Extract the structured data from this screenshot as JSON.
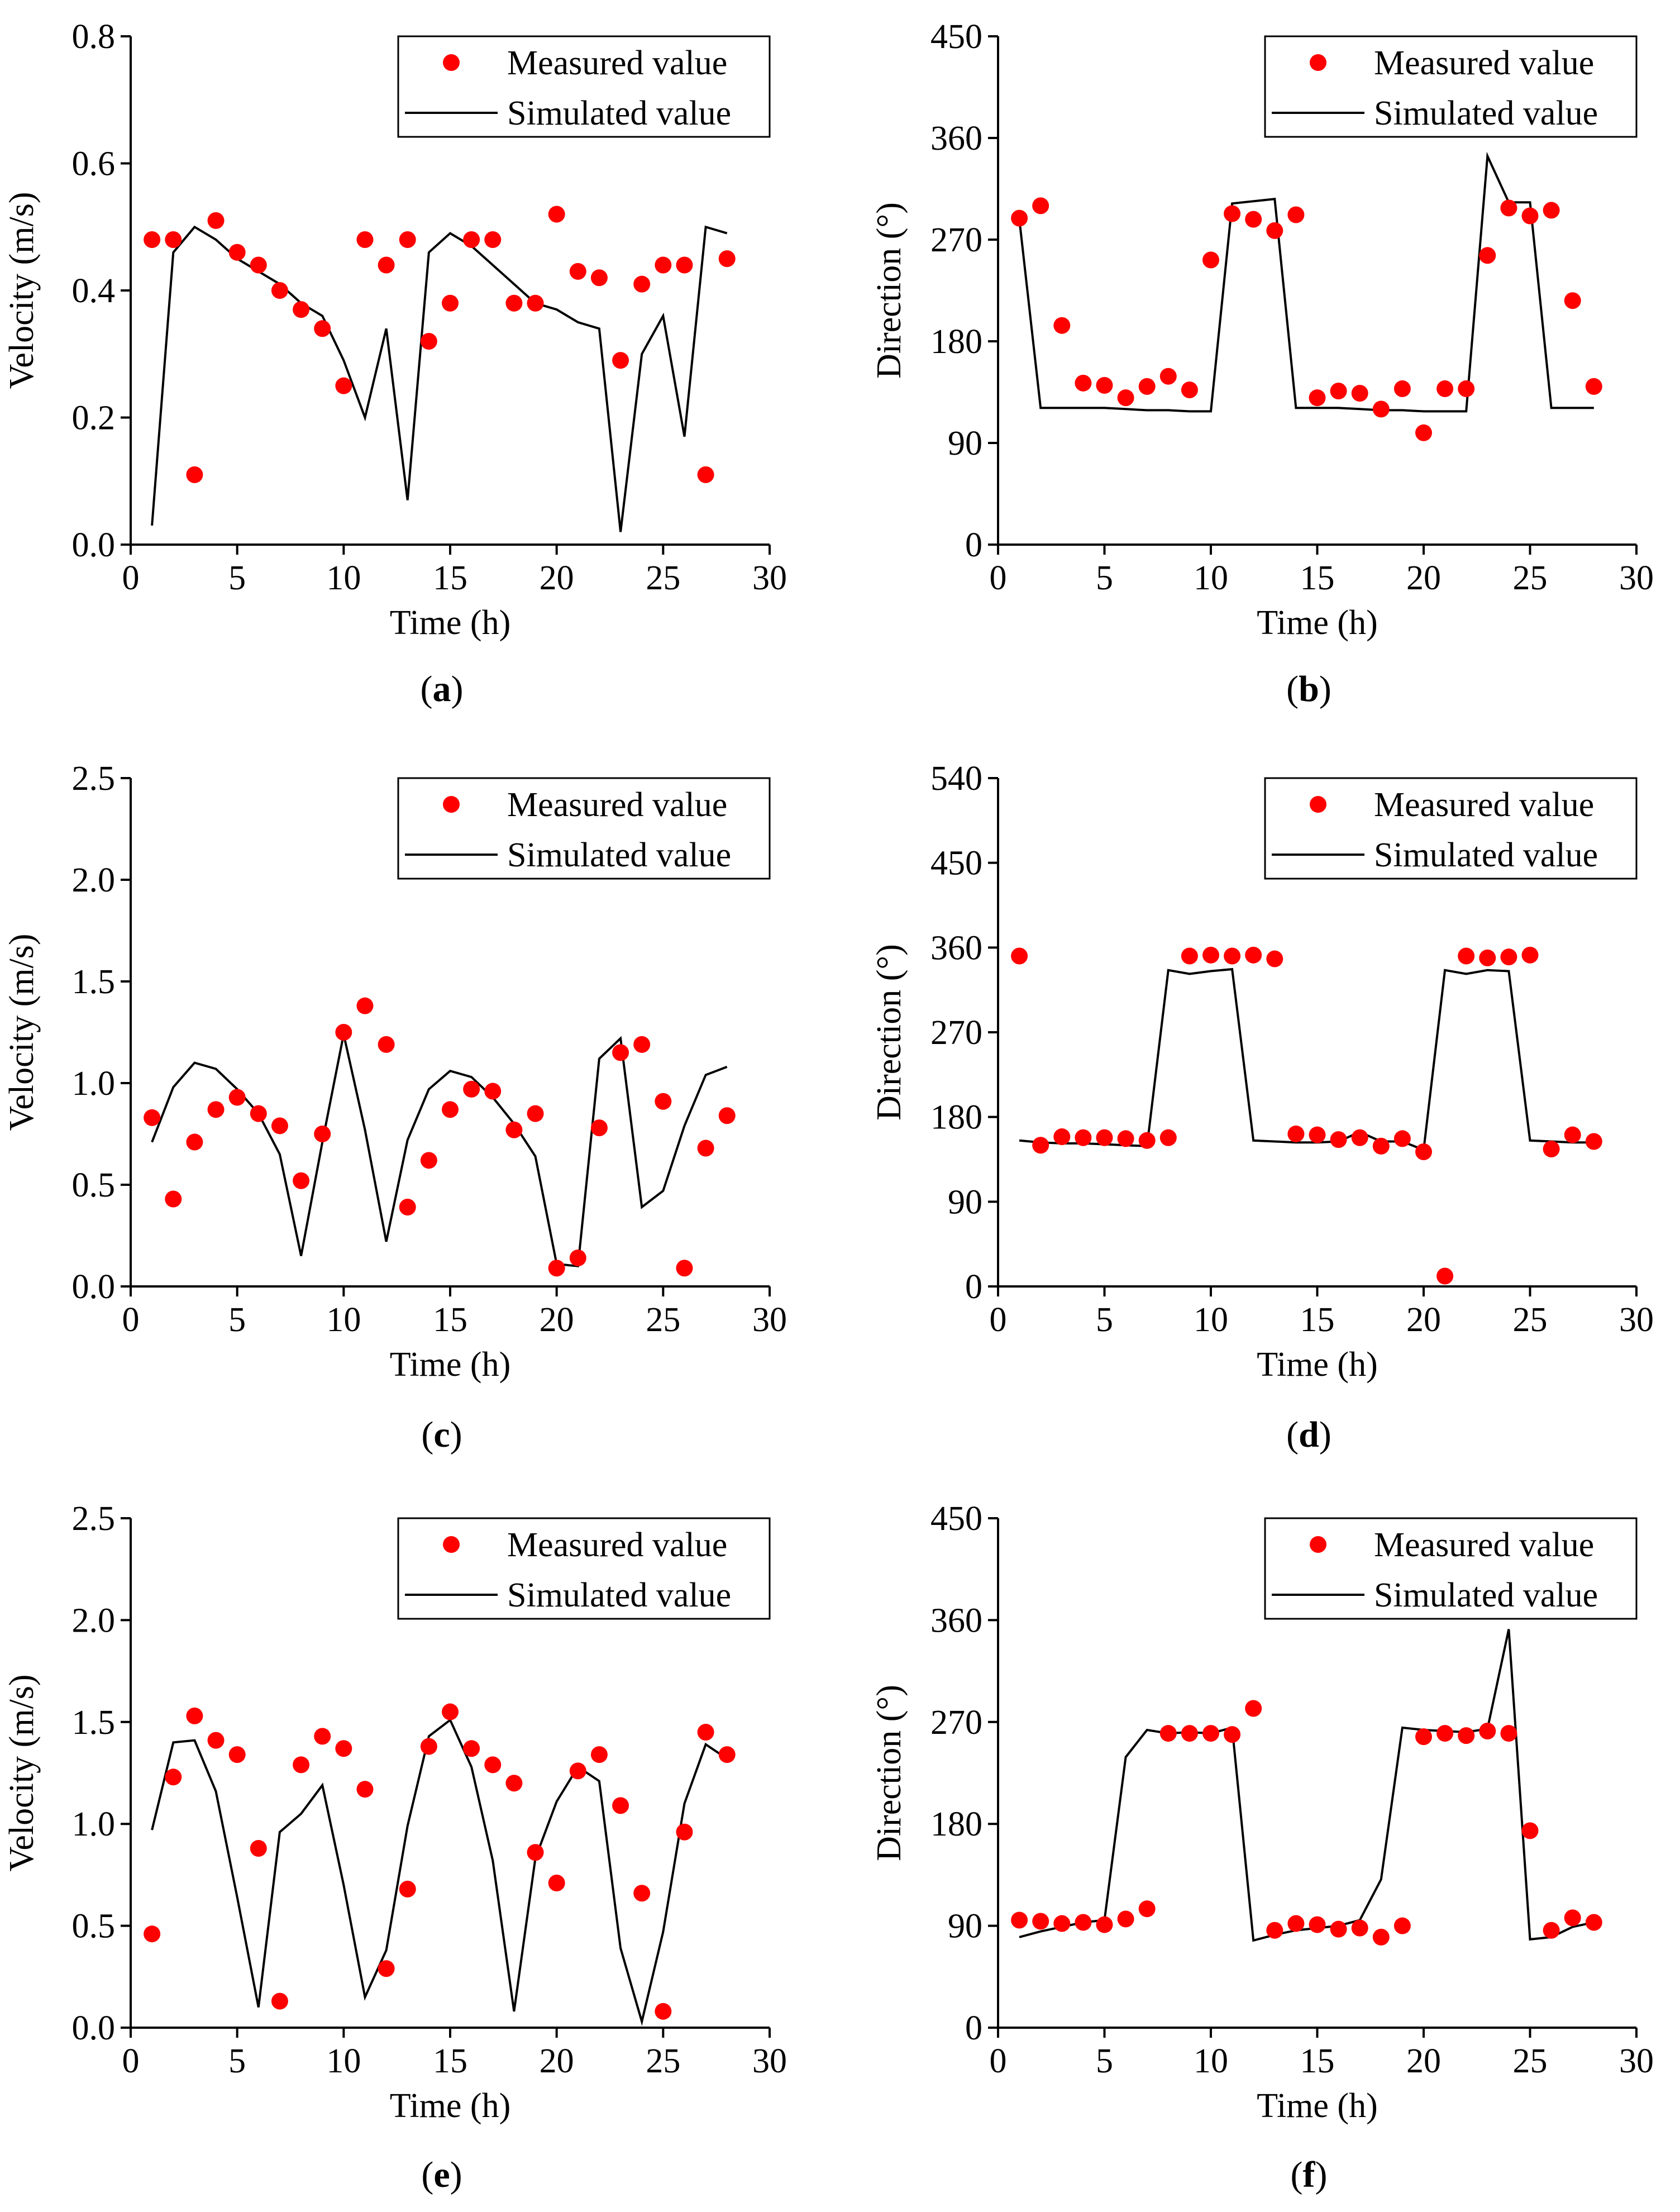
{
  "legend": {
    "measured_label": "Measured value",
    "simulated_label": "Simulated value",
    "measured_color": "#ff0000",
    "line_color": "#000000"
  },
  "chart_data": [
    {
      "id": "a",
      "type": "scatter+line",
      "panel_label": "a",
      "xlabel": "Time (h)",
      "ylabel": "Velocity (m/s)",
      "xlim": [
        0,
        30
      ],
      "ylim": [
        0,
        0.8
      ],
      "xticks": [
        0,
        5,
        10,
        15,
        20,
        25,
        30
      ],
      "yticks": [
        0.0,
        0.2,
        0.4,
        0.6,
        0.8
      ],
      "ytick_labels": [
        "0.0",
        "0.2",
        "0.4",
        "0.6",
        "0.8"
      ],
      "series": [
        {
          "name": "Measured value",
          "kind": "scatter",
          "x": [
            1,
            2,
            3,
            4,
            5,
            6,
            7,
            8,
            9,
            10,
            11,
            12,
            13,
            14,
            15,
            16,
            17,
            18,
            19,
            20,
            21,
            22,
            23,
            24,
            25,
            26,
            27,
            28
          ],
          "y": [
            0.48,
            0.48,
            0.11,
            0.51,
            0.46,
            0.44,
            0.4,
            0.37,
            0.34,
            0.25,
            0.48,
            0.44,
            0.48,
            0.32,
            0.38,
            0.48,
            0.48,
            0.38,
            0.38,
            0.52,
            0.43,
            0.42,
            0.29,
            0.41,
            0.44,
            0.44,
            0.11,
            0.45
          ]
        },
        {
          "name": "Simulated value",
          "kind": "line",
          "x": [
            1,
            2,
            3,
            4,
            5,
            6,
            7,
            8,
            9,
            10,
            11,
            12,
            13,
            14,
            15,
            16,
            17,
            18,
            19,
            20,
            21,
            22,
            23,
            24,
            25,
            26,
            27,
            28
          ],
          "y": [
            0.03,
            0.46,
            0.5,
            0.48,
            0.45,
            0.43,
            0.41,
            0.38,
            0.36,
            0.29,
            0.2,
            0.34,
            0.07,
            0.46,
            0.49,
            0.47,
            0.44,
            0.41,
            0.38,
            0.37,
            0.35,
            0.34,
            0.02,
            0.3,
            0.36,
            0.17,
            0.5,
            0.49
          ]
        }
      ]
    },
    {
      "id": "b",
      "type": "scatter+line",
      "panel_label": "b",
      "xlabel": "Time (h)",
      "ylabel": "Direction (°)",
      "xlim": [
        0,
        30
      ],
      "ylim": [
        0,
        450
      ],
      "xticks": [
        0,
        5,
        10,
        15,
        20,
        25,
        30
      ],
      "yticks": [
        0,
        90,
        180,
        270,
        360,
        450
      ],
      "ytick_labels": [
        "0",
        "90",
        "180",
        "270",
        "360",
        "450"
      ],
      "series": [
        {
          "name": "Measured value",
          "kind": "scatter",
          "x": [
            1,
            2,
            3,
            4,
            5,
            6,
            7,
            8,
            9,
            10,
            11,
            12,
            13,
            14,
            15,
            16,
            17,
            18,
            19,
            20,
            21,
            22,
            23,
            24,
            25,
            26,
            27,
            28
          ],
          "y": [
            289,
            300,
            194,
            143,
            141,
            130,
            140,
            149,
            137,
            252,
            293,
            288,
            278,
            292,
            130,
            136,
            134,
            120,
            138,
            99,
            138,
            138,
            256,
            298,
            291,
            296,
            216,
            140
          ]
        },
        {
          "name": "Simulated value",
          "kind": "line",
          "x": [
            1,
            2,
            3,
            4,
            5,
            6,
            7,
            8,
            9,
            10,
            11,
            12,
            13,
            14,
            15,
            16,
            17,
            18,
            19,
            20,
            21,
            22,
            23,
            24,
            25,
            26,
            27,
            28
          ],
          "y": [
            288,
            121,
            121,
            121,
            121,
            120,
            119,
            119,
            118,
            118,
            302,
            304,
            306,
            121,
            121,
            121,
            120,
            119,
            119,
            118,
            118,
            118,
            344,
            303,
            303,
            121,
            121,
            121
          ]
        }
      ]
    },
    {
      "id": "c",
      "type": "scatter+line",
      "panel_label": "c",
      "xlabel": "Time (h)",
      "ylabel": "Velocity (m/s)",
      "xlim": [
        0,
        30
      ],
      "ylim": [
        0,
        2.5
      ],
      "xticks": [
        0,
        5,
        10,
        15,
        20,
        25,
        30
      ],
      "yticks": [
        0.0,
        0.5,
        1.0,
        1.5,
        2.0,
        2.5
      ],
      "ytick_labels": [
        "0.0",
        "0.5",
        "1.0",
        "1.5",
        "2.0",
        "2.5"
      ],
      "series": [
        {
          "name": "Measured value",
          "kind": "scatter",
          "x": [
            1,
            2,
            3,
            4,
            5,
            6,
            7,
            8,
            9,
            10,
            11,
            12,
            13,
            14,
            15,
            16,
            17,
            18,
            19,
            20,
            21,
            22,
            23,
            24,
            25,
            26,
            27,
            28
          ],
          "y": [
            0.83,
            0.43,
            0.71,
            0.87,
            0.93,
            0.85,
            0.79,
            0.52,
            0.75,
            1.25,
            1.38,
            1.19,
            0.39,
            0.62,
            0.87,
            0.97,
            0.96,
            0.77,
            0.85,
            0.09,
            0.14,
            0.78,
            1.15,
            1.19,
            0.91,
            0.09,
            0.68,
            0.84
          ]
        },
        {
          "name": "Simulated value",
          "kind": "line",
          "x": [
            1,
            2,
            3,
            4,
            5,
            6,
            7,
            8,
            9,
            10,
            11,
            12,
            13,
            14,
            15,
            16,
            17,
            18,
            19,
            20,
            21,
            22,
            23,
            24,
            25,
            26,
            27,
            28
          ],
          "y": [
            0.71,
            0.98,
            1.1,
            1.07,
            0.97,
            0.85,
            0.65,
            0.15,
            0.71,
            1.24,
            0.77,
            0.22,
            0.72,
            0.97,
            1.06,
            1.03,
            0.93,
            0.8,
            0.64,
            0.11,
            0.1,
            1.12,
            1.22,
            0.39,
            0.47,
            0.79,
            1.04,
            1.08
          ]
        }
      ]
    },
    {
      "id": "d",
      "type": "scatter+line",
      "panel_label": "d",
      "xlabel": "Time (h)",
      "ylabel": "Direction (°)",
      "xlim": [
        0,
        30
      ],
      "ylim": [
        0,
        540
      ],
      "xticks": [
        0,
        5,
        10,
        15,
        20,
        25,
        30
      ],
      "yticks": [
        0,
        90,
        180,
        270,
        360,
        450,
        540
      ],
      "ytick_labels": [
        "0",
        "90",
        "180",
        "270",
        "360",
        "450",
        "540"
      ],
      "series": [
        {
          "name": "Measured value",
          "kind": "scatter",
          "x": [
            1,
            2,
            3,
            4,
            5,
            6,
            7,
            8,
            9,
            10,
            11,
            12,
            13,
            14,
            15,
            16,
            17,
            18,
            19,
            20,
            21,
            22,
            23,
            24,
            25,
            26,
            27,
            28
          ],
          "y": [
            351,
            150,
            159,
            158,
            158,
            157,
            155,
            158,
            351,
            352,
            351,
            352,
            348,
            162,
            161,
            156,
            158,
            149,
            157,
            143,
            11,
            351,
            349,
            350,
            352,
            146,
            161,
            154
          ]
        },
        {
          "name": "Simulated value",
          "kind": "line",
          "x": [
            1,
            2,
            3,
            4,
            5,
            6,
            7,
            8,
            9,
            10,
            11,
            12,
            13,
            14,
            15,
            16,
            17,
            18,
            19,
            20,
            21,
            22,
            23,
            24,
            25,
            26,
            27,
            28
          ],
          "y": [
            155,
            153,
            152,
            152,
            151,
            150,
            149,
            336,
            332,
            335,
            337,
            155,
            154,
            153,
            153,
            154,
            164,
            154,
            154,
            145,
            336,
            332,
            336,
            335,
            155,
            154,
            153,
            153
          ]
        }
      ]
    },
    {
      "id": "e",
      "type": "scatter+line",
      "panel_label": "e",
      "xlabel": "Time (h)",
      "ylabel": "Velocity (m/s)",
      "xlim": [
        0,
        30
      ],
      "ylim": [
        0,
        2.5
      ],
      "xticks": [
        0,
        5,
        10,
        15,
        20,
        25,
        30
      ],
      "yticks": [
        0.0,
        0.5,
        1.0,
        1.5,
        2.0,
        2.5
      ],
      "ytick_labels": [
        "0.0",
        "0.5",
        "1.0",
        "1.5",
        "2.0",
        "2.5"
      ],
      "series": [
        {
          "name": "Measured value",
          "kind": "scatter",
          "x": [
            1,
            2,
            3,
            4,
            5,
            6,
            7,
            8,
            9,
            10,
            11,
            12,
            13,
            14,
            15,
            16,
            17,
            18,
            19,
            20,
            21,
            22,
            23,
            24,
            25,
            26,
            27,
            28
          ],
          "y": [
            0.46,
            1.23,
            1.53,
            1.41,
            1.34,
            0.88,
            0.13,
            1.29,
            1.43,
            1.37,
            1.17,
            0.29,
            0.68,
            1.38,
            1.55,
            1.37,
            1.29,
            1.2,
            0.86,
            0.71,
            1.26,
            1.34,
            1.09,
            0.66,
            0.08,
            0.96,
            1.45,
            1.34
          ]
        },
        {
          "name": "Simulated value",
          "kind": "line",
          "x": [
            1,
            2,
            3,
            4,
            5,
            6,
            7,
            8,
            9,
            10,
            11,
            12,
            13,
            14,
            15,
            16,
            17,
            18,
            19,
            20,
            21,
            22,
            23,
            24,
            25,
            26,
            27,
            28
          ],
          "y": [
            0.97,
            1.4,
            1.41,
            1.16,
            0.64,
            0.1,
            0.96,
            1.05,
            1.19,
            0.7,
            0.15,
            0.38,
            0.99,
            1.43,
            1.51,
            1.28,
            0.82,
            0.08,
            0.83,
            1.11,
            1.28,
            1.21,
            0.39,
            0.03,
            0.47,
            1.1,
            1.39,
            1.32
          ]
        }
      ]
    },
    {
      "id": "f",
      "type": "scatter+line",
      "panel_label": "f",
      "xlabel": "Time (h)",
      "ylabel": "Direction (°)",
      "xlim": [
        0,
        30
      ],
      "ylim": [
        0,
        450
      ],
      "xticks": [
        0,
        5,
        10,
        15,
        20,
        25,
        30
      ],
      "yticks": [
        0,
        90,
        180,
        270,
        360,
        450
      ],
      "ytick_labels": [
        "0",
        "90",
        "180",
        "270",
        "360",
        "450"
      ],
      "series": [
        {
          "name": "Measured value",
          "kind": "scatter",
          "x": [
            1,
            2,
            3,
            4,
            5,
            6,
            7,
            8,
            9,
            10,
            11,
            12,
            13,
            14,
            15,
            16,
            17,
            18,
            19,
            20,
            21,
            22,
            23,
            24,
            25,
            26,
            27,
            28
          ],
          "y": [
            95,
            94,
            92,
            93,
            91,
            96,
            105,
            260,
            260,
            260,
            259,
            282,
            86,
            92,
            91,
            87,
            88,
            80,
            90,
            257,
            260,
            258,
            262,
            260,
            174,
            86,
            97,
            93
          ]
        },
        {
          "name": "Simulated value",
          "kind": "line",
          "x": [
            1,
            2,
            3,
            4,
            5,
            6,
            7,
            8,
            9,
            10,
            11,
            12,
            13,
            14,
            15,
            16,
            17,
            18,
            19,
            20,
            21,
            22,
            23,
            24,
            25,
            26,
            27,
            28
          ],
          "y": [
            80,
            85,
            89,
            93,
            95,
            239,
            263,
            260,
            261,
            260,
            265,
            77,
            82,
            86,
            88,
            90,
            95,
            131,
            265,
            263,
            262,
            261,
            264,
            352,
            78,
            80,
            89,
            93
          ]
        }
      ]
    }
  ]
}
